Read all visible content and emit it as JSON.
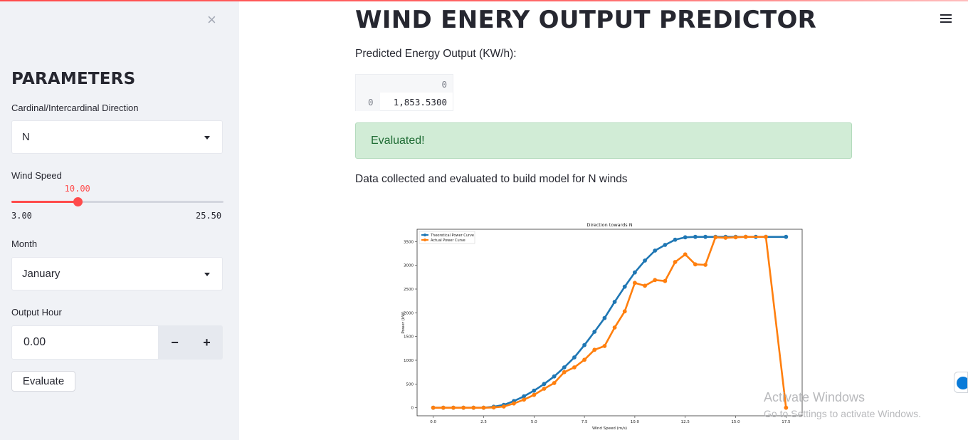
{
  "sidebar": {
    "close_icon": "close-icon",
    "title": "PARAMETERS",
    "direction": {
      "label": "Cardinal/Intercardinal Direction",
      "value": "N"
    },
    "wind_speed": {
      "label": "Wind Speed",
      "value": "10.00",
      "min": "3.00",
      "max": "25.50",
      "value_num": 10.0,
      "min_num": 3.0,
      "max_num": 25.5
    },
    "month": {
      "label": "Month",
      "value": "January"
    },
    "output_hour": {
      "label": "Output Hour",
      "value": "0.00",
      "minus": "−",
      "plus": "+"
    },
    "evaluate_label": "Evaluate"
  },
  "main": {
    "title": "WIND ENERY OUTPUT PREDICTOR",
    "menu_icon": "hamburger-menu-icon",
    "pred_label": "Predicted Energy Output (KW/h):",
    "table": {
      "column": "0",
      "index": "0",
      "value": "1,853.5300"
    },
    "success": "Evaluated!",
    "collected": "Data collected and evaluated to build model for N winds"
  },
  "watermark": {
    "line1": "Activate Windows",
    "line2": "Go to Settings to activate Windows."
  },
  "accent": "#ff4b4b",
  "chart_data": {
    "type": "line",
    "title": "Direction towards N",
    "xlabel": "Wind Speed (m/s)",
    "ylabel": "Power (kW)",
    "xlim": [
      -0.8,
      18.3
    ],
    "ylim": [
      -170,
      3760
    ],
    "xticks": [
      0.0,
      2.5,
      5.0,
      7.5,
      10.0,
      12.5,
      15.0,
      17.5
    ],
    "xtick_labels": [
      "0.0",
      "2.5",
      "5.0",
      "7.5",
      "10.0",
      "12.5",
      "15.0",
      "17.5"
    ],
    "yticks": [
      0,
      500,
      1000,
      1500,
      2000,
      2500,
      3000,
      3500
    ],
    "ytick_labels": [
      "0",
      "500",
      "1000",
      "1500",
      "2000",
      "2500",
      "3000",
      "3500"
    ],
    "legend": "top-left",
    "series": [
      {
        "name": "Theoretical Power Curve",
        "color": "#1f77b4",
        "x": [
          0,
          0.5,
          1,
          1.5,
          2,
          2.5,
          3,
          3.5,
          4,
          4.5,
          5,
          5.5,
          6,
          6.5,
          7,
          7.5,
          8,
          8.5,
          9,
          9.5,
          10,
          10.5,
          11,
          11.5,
          12,
          12.5,
          13,
          13.5,
          14,
          14.5,
          15,
          15.5,
          16,
          16.5,
          17.5
        ],
        "y": [
          0,
          0,
          0,
          0,
          0,
          0,
          20,
          60,
          140,
          240,
          360,
          500,
          660,
          850,
          1060,
          1320,
          1600,
          1890,
          2230,
          2550,
          2850,
          3100,
          3310,
          3430,
          3540,
          3590,
          3600,
          3600,
          3600,
          3600,
          3600,
          3600,
          3600,
          3600,
          3600
        ]
      },
      {
        "name": "Actual Power Curve",
        "color": "#ff7f0e",
        "x": [
          0,
          0.5,
          1,
          1.5,
          2,
          2.5,
          3,
          3.5,
          4,
          4.5,
          5,
          5.5,
          6,
          6.5,
          7,
          7.5,
          8,
          8.5,
          9,
          9.5,
          10,
          10.5,
          11,
          11.5,
          12,
          12.5,
          13,
          13.5,
          14,
          14.5,
          15,
          15.5,
          16.5,
          17.5
        ],
        "y": [
          0,
          0,
          0,
          0,
          0,
          0,
          5,
          25,
          90,
          170,
          270,
          400,
          520,
          750,
          850,
          1010,
          1220,
          1300,
          1690,
          2030,
          2630,
          2570,
          2690,
          2670,
          3070,
          3230,
          3020,
          3010,
          3590,
          3580,
          3590,
          3600,
          3600,
          0
        ]
      }
    ]
  }
}
